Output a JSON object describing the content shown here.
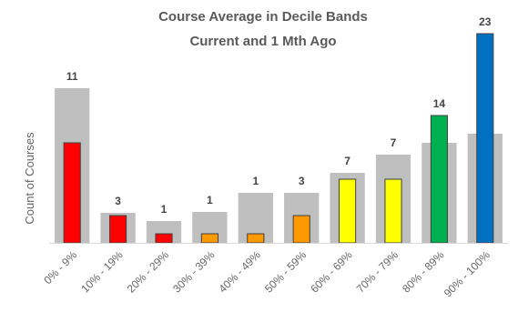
{
  "chart_data": {
    "type": "bar",
    "title": "Course Average in Decile Bands",
    "subtitle": "Current and 1 Mth Ago",
    "xlabel": "",
    "ylabel": "Count of Courses",
    "ylim": [
      0,
      25
    ],
    "grid": false,
    "legend": "none",
    "categories": [
      "0% - 9%",
      "10% - 19%",
      "20% - 29%",
      "30% - 39%",
      "40% - 49%",
      "50% - 59%",
      "60% - 69%",
      "70% - 79%",
      "80% - 89%",
      "90% - 100%"
    ],
    "series": [
      {
        "role": "background",
        "color": "#bfbfbf",
        "values": [
          17,
          3.3,
          2.4,
          3.4,
          5.5,
          5.5,
          7.7,
          9.7,
          11,
          12
        ]
      },
      {
        "role": "foreground",
        "values": [
          11,
          3,
          1,
          1,
          1,
          3,
          7,
          7,
          14,
          23
        ],
        "data_labels": [
          "11",
          "3",
          "1",
          "1",
          "1",
          "3",
          "7",
          "7",
          "14",
          "23"
        ],
        "colors": [
          "#ff0000",
          "#ff0000",
          "#ff0000",
          "#ff9900",
          "#ff9900",
          "#ff9900",
          "#ffff00",
          "#ffff00",
          "#00b050",
          "#0070c0"
        ]
      }
    ]
  }
}
